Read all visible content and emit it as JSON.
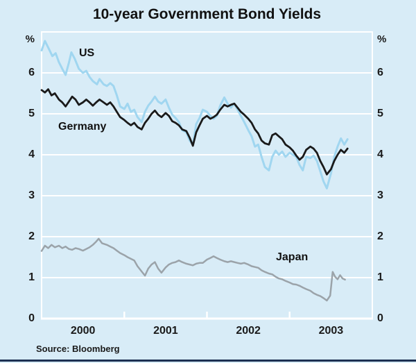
{
  "page": {
    "background_color": "#d8ecf7",
    "footer_rule_color": "#1c2f52",
    "source_note": "Source: Bloomberg"
  },
  "chart_data": {
    "type": "line",
    "title": "10-year Government Bond Yields",
    "unit": "%",
    "grid_color": "#ffffff",
    "y_axis": {
      "min": 0,
      "max": 7,
      "tick_labels": [
        "0",
        "1",
        "2",
        "3",
        "4",
        "5",
        "6"
      ],
      "gridline_values": [
        1,
        2,
        3,
        4,
        5,
        6
      ]
    },
    "x_axis": {
      "min_year": 2000,
      "max_year": 2004,
      "labels": [
        "2000",
        "2001",
        "2002",
        "2003"
      ],
      "label_centers": [
        2000.5,
        2001.5,
        2002.5,
        2003.5
      ],
      "tick_years": [
        2001,
        2002,
        2003
      ]
    },
    "series": [
      {
        "name": "US",
        "color": "#a0d6f0",
        "stroke_width": 3,
        "points": [
          [
            2000.0,
            6.55
          ],
          [
            2000.04,
            6.78
          ],
          [
            2000.08,
            6.62
          ],
          [
            2000.13,
            6.41
          ],
          [
            2000.17,
            6.48
          ],
          [
            2000.21,
            6.26
          ],
          [
            2000.25,
            6.1
          ],
          [
            2000.29,
            5.95
          ],
          [
            2000.33,
            6.25
          ],
          [
            2000.36,
            6.5
          ],
          [
            2000.4,
            6.35
          ],
          [
            2000.45,
            6.1
          ],
          [
            2000.5,
            6.0
          ],
          [
            2000.54,
            6.05
          ],
          [
            2000.58,
            5.9
          ],
          [
            2000.62,
            5.8
          ],
          [
            2000.67,
            5.72
          ],
          [
            2000.7,
            5.85
          ],
          [
            2000.75,
            5.72
          ],
          [
            2000.79,
            5.68
          ],
          [
            2000.83,
            5.75
          ],
          [
            2000.87,
            5.68
          ],
          [
            2000.91,
            5.45
          ],
          [
            2000.95,
            5.18
          ],
          [
            2001.0,
            5.12
          ],
          [
            2001.04,
            5.25
          ],
          [
            2001.08,
            5.05
          ],
          [
            2001.12,
            5.1
          ],
          [
            2001.16,
            4.92
          ],
          [
            2001.21,
            4.8
          ],
          [
            2001.25,
            5.05
          ],
          [
            2001.29,
            5.2
          ],
          [
            2001.33,
            5.3
          ],
          [
            2001.37,
            5.42
          ],
          [
            2001.41,
            5.3
          ],
          [
            2001.45,
            5.25
          ],
          [
            2001.5,
            5.35
          ],
          [
            2001.54,
            5.15
          ],
          [
            2001.58,
            4.98
          ],
          [
            2001.62,
            4.9
          ],
          [
            2001.66,
            4.8
          ],
          [
            2001.7,
            4.6
          ],
          [
            2001.75,
            4.55
          ],
          [
            2001.79,
            4.35
          ],
          [
            2001.83,
            4.25
          ],
          [
            2001.87,
            4.75
          ],
          [
            2001.91,
            4.9
          ],
          [
            2001.95,
            5.1
          ],
          [
            2002.0,
            5.05
          ],
          [
            2002.04,
            4.95
          ],
          [
            2002.08,
            4.88
          ],
          [
            2002.12,
            4.95
          ],
          [
            2002.16,
            5.2
          ],
          [
            2002.21,
            5.4
          ],
          [
            2002.25,
            5.25
          ],
          [
            2002.29,
            5.15
          ],
          [
            2002.33,
            5.25
          ],
          [
            2002.37,
            5.1
          ],
          [
            2002.41,
            4.95
          ],
          [
            2002.45,
            4.8
          ],
          [
            2002.5,
            4.6
          ],
          [
            2002.54,
            4.45
          ],
          [
            2002.58,
            4.2
          ],
          [
            2002.62,
            4.25
          ],
          [
            2002.66,
            3.95
          ],
          [
            2002.7,
            3.7
          ],
          [
            2002.75,
            3.62
          ],
          [
            2002.79,
            3.95
          ],
          [
            2002.83,
            4.1
          ],
          [
            2002.87,
            4.0
          ],
          [
            2002.91,
            4.08
          ],
          [
            2002.95,
            3.95
          ],
          [
            2003.0,
            4.05
          ],
          [
            2003.04,
            4.0
          ],
          [
            2003.08,
            3.95
          ],
          [
            2003.12,
            3.75
          ],
          [
            2003.16,
            3.62
          ],
          [
            2003.2,
            3.95
          ],
          [
            2003.25,
            3.92
          ],
          [
            2003.29,
            3.98
          ],
          [
            2003.33,
            3.85
          ],
          [
            2003.37,
            3.6
          ],
          [
            2003.41,
            3.35
          ],
          [
            2003.45,
            3.18
          ],
          [
            2003.5,
            3.55
          ],
          [
            2003.54,
            3.95
          ],
          [
            2003.58,
            4.2
          ],
          [
            2003.62,
            4.4
          ],
          [
            2003.66,
            4.25
          ],
          [
            2003.7,
            4.38
          ]
        ]
      },
      {
        "name": "Japan",
        "color": "#9ba3a9",
        "stroke_width": 2.5,
        "points": [
          [
            2000.0,
            1.65
          ],
          [
            2000.04,
            1.78
          ],
          [
            2000.08,
            1.72
          ],
          [
            2000.12,
            1.8
          ],
          [
            2000.16,
            1.74
          ],
          [
            2000.21,
            1.78
          ],
          [
            2000.25,
            1.72
          ],
          [
            2000.29,
            1.76
          ],
          [
            2000.33,
            1.7
          ],
          [
            2000.37,
            1.68
          ],
          [
            2000.41,
            1.72
          ],
          [
            2000.45,
            1.7
          ],
          [
            2000.5,
            1.66
          ],
          [
            2000.54,
            1.7
          ],
          [
            2000.58,
            1.74
          ],
          [
            2000.62,
            1.8
          ],
          [
            2000.66,
            1.88
          ],
          [
            2000.69,
            1.95
          ],
          [
            2000.73,
            1.84
          ],
          [
            2000.79,
            1.8
          ],
          [
            2000.83,
            1.76
          ],
          [
            2000.87,
            1.72
          ],
          [
            2000.91,
            1.66
          ],
          [
            2000.95,
            1.6
          ],
          [
            2001.0,
            1.55
          ],
          [
            2001.04,
            1.5
          ],
          [
            2001.08,
            1.46
          ],
          [
            2001.12,
            1.42
          ],
          [
            2001.16,
            1.28
          ],
          [
            2001.21,
            1.15
          ],
          [
            2001.25,
            1.05
          ],
          [
            2001.29,
            1.22
          ],
          [
            2001.33,
            1.32
          ],
          [
            2001.37,
            1.38
          ],
          [
            2001.41,
            1.22
          ],
          [
            2001.45,
            1.12
          ],
          [
            2001.5,
            1.25
          ],
          [
            2001.54,
            1.32
          ],
          [
            2001.58,
            1.36
          ],
          [
            2001.62,
            1.38
          ],
          [
            2001.66,
            1.42
          ],
          [
            2001.7,
            1.38
          ],
          [
            2001.75,
            1.34
          ],
          [
            2001.79,
            1.32
          ],
          [
            2001.83,
            1.3
          ],
          [
            2001.87,
            1.34
          ],
          [
            2001.91,
            1.36
          ],
          [
            2001.95,
            1.36
          ],
          [
            2002.0,
            1.44
          ],
          [
            2002.04,
            1.48
          ],
          [
            2002.08,
            1.52
          ],
          [
            2002.12,
            1.48
          ],
          [
            2002.16,
            1.44
          ],
          [
            2002.21,
            1.4
          ],
          [
            2002.25,
            1.38
          ],
          [
            2002.29,
            1.4
          ],
          [
            2002.33,
            1.38
          ],
          [
            2002.37,
            1.36
          ],
          [
            2002.41,
            1.34
          ],
          [
            2002.45,
            1.36
          ],
          [
            2002.5,
            1.32
          ],
          [
            2002.54,
            1.28
          ],
          [
            2002.58,
            1.26
          ],
          [
            2002.62,
            1.24
          ],
          [
            2002.66,
            1.18
          ],
          [
            2002.7,
            1.14
          ],
          [
            2002.75,
            1.1
          ],
          [
            2002.79,
            1.08
          ],
          [
            2002.83,
            1.02
          ],
          [
            2002.87,
            0.98
          ],
          [
            2002.91,
            0.96
          ],
          [
            2002.95,
            0.92
          ],
          [
            2003.0,
            0.88
          ],
          [
            2003.04,
            0.84
          ],
          [
            2003.08,
            0.83
          ],
          [
            2003.12,
            0.8
          ],
          [
            2003.16,
            0.76
          ],
          [
            2003.2,
            0.72
          ],
          [
            2003.25,
            0.68
          ],
          [
            2003.29,
            0.62
          ],
          [
            2003.33,
            0.58
          ],
          [
            2003.37,
            0.55
          ],
          [
            2003.41,
            0.5
          ],
          [
            2003.45,
            0.44
          ],
          [
            2003.49,
            0.56
          ],
          [
            2003.52,
            1.14
          ],
          [
            2003.55,
            1.02
          ],
          [
            2003.58,
            0.96
          ],
          [
            2003.61,
            1.06
          ],
          [
            2003.64,
            0.98
          ],
          [
            2003.67,
            0.95
          ]
        ]
      },
      {
        "name": "Germany",
        "color": "#1a1a1a",
        "stroke_width": 2.8,
        "points": [
          [
            2000.0,
            5.58
          ],
          [
            2000.04,
            5.52
          ],
          [
            2000.08,
            5.6
          ],
          [
            2000.12,
            5.45
          ],
          [
            2000.16,
            5.5
          ],
          [
            2000.21,
            5.35
          ],
          [
            2000.25,
            5.28
          ],
          [
            2000.29,
            5.18
          ],
          [
            2000.33,
            5.3
          ],
          [
            2000.37,
            5.42
          ],
          [
            2000.41,
            5.35
          ],
          [
            2000.45,
            5.22
          ],
          [
            2000.5,
            5.28
          ],
          [
            2000.54,
            5.35
          ],
          [
            2000.58,
            5.28
          ],
          [
            2000.62,
            5.2
          ],
          [
            2000.66,
            5.28
          ],
          [
            2000.7,
            5.35
          ],
          [
            2000.75,
            5.28
          ],
          [
            2000.79,
            5.22
          ],
          [
            2000.83,
            5.28
          ],
          [
            2000.87,
            5.18
          ],
          [
            2000.91,
            5.05
          ],
          [
            2000.95,
            4.92
          ],
          [
            2001.0,
            4.85
          ],
          [
            2001.04,
            4.78
          ],
          [
            2001.08,
            4.72
          ],
          [
            2001.12,
            4.78
          ],
          [
            2001.16,
            4.68
          ],
          [
            2001.21,
            4.62
          ],
          [
            2001.25,
            4.78
          ],
          [
            2001.29,
            4.88
          ],
          [
            2001.33,
            5.0
          ],
          [
            2001.37,
            5.08
          ],
          [
            2001.41,
            4.98
          ],
          [
            2001.45,
            4.92
          ],
          [
            2001.5,
            5.02
          ],
          [
            2001.54,
            4.95
          ],
          [
            2001.58,
            4.82
          ],
          [
            2001.62,
            4.78
          ],
          [
            2001.66,
            4.72
          ],
          [
            2001.7,
            4.62
          ],
          [
            2001.75,
            4.58
          ],
          [
            2001.79,
            4.42
          ],
          [
            2001.83,
            4.22
          ],
          [
            2001.87,
            4.55
          ],
          [
            2001.91,
            4.72
          ],
          [
            2001.95,
            4.88
          ],
          [
            2002.0,
            4.95
          ],
          [
            2002.04,
            4.88
          ],
          [
            2002.08,
            4.92
          ],
          [
            2002.12,
            4.98
          ],
          [
            2002.16,
            5.1
          ],
          [
            2002.21,
            5.22
          ],
          [
            2002.25,
            5.18
          ],
          [
            2002.29,
            5.22
          ],
          [
            2002.33,
            5.25
          ],
          [
            2002.37,
            5.15
          ],
          [
            2002.41,
            5.05
          ],
          [
            2002.45,
            4.98
          ],
          [
            2002.5,
            4.88
          ],
          [
            2002.54,
            4.78
          ],
          [
            2002.58,
            4.62
          ],
          [
            2002.62,
            4.52
          ],
          [
            2002.66,
            4.35
          ],
          [
            2002.7,
            4.28
          ],
          [
            2002.75,
            4.25
          ],
          [
            2002.79,
            4.48
          ],
          [
            2002.83,
            4.52
          ],
          [
            2002.87,
            4.45
          ],
          [
            2002.91,
            4.38
          ],
          [
            2002.95,
            4.25
          ],
          [
            2003.0,
            4.18
          ],
          [
            2003.04,
            4.1
          ],
          [
            2003.08,
            3.98
          ],
          [
            2003.12,
            3.88
          ],
          [
            2003.16,
            3.95
          ],
          [
            2003.2,
            4.12
          ],
          [
            2003.25,
            4.2
          ],
          [
            2003.29,
            4.15
          ],
          [
            2003.33,
            4.05
          ],
          [
            2003.37,
            3.85
          ],
          [
            2003.41,
            3.7
          ],
          [
            2003.45,
            3.52
          ],
          [
            2003.5,
            3.65
          ],
          [
            2003.54,
            3.85
          ],
          [
            2003.58,
            4.0
          ],
          [
            2003.62,
            4.12
          ],
          [
            2003.66,
            4.05
          ],
          [
            2003.7,
            4.15
          ]
        ]
      }
    ]
  }
}
